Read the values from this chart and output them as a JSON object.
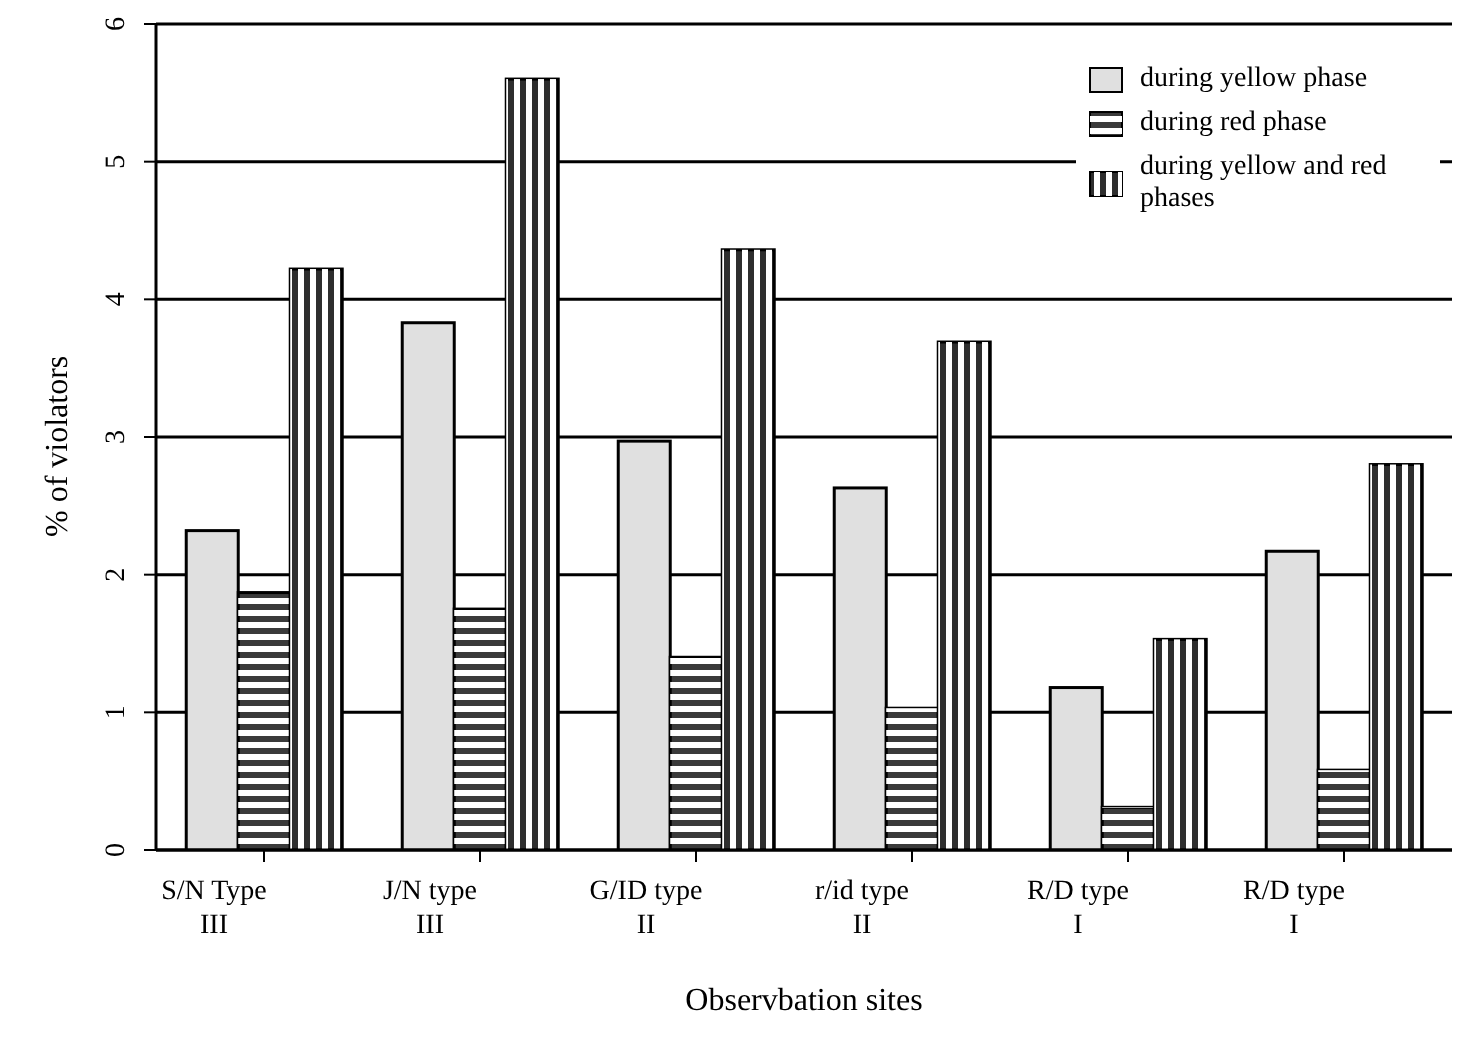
{
  "chart_data": {
    "type": "bar",
    "xlabel": "Observbation sites",
    "ylabel": "% of violators",
    "categories": [
      "S/N Type III",
      "J/N type III",
      "G/ID type II",
      "r/id type II",
      "R/D type I",
      "R/D type I"
    ],
    "series": [
      {
        "name": "during yellow phase",
        "color": "#e0e0e0",
        "values": [
          2.32,
          3.83,
          2.97,
          2.63,
          1.18,
          2.17
        ]
      },
      {
        "name": "during red phase",
        "color": "#3a3a3a",
        "values": [
          1.87,
          1.75,
          1.4,
          1.03,
          0.31,
          0.58
        ]
      },
      {
        "name": "during yellow and red phases",
        "color": "#2e2e2e",
        "values": [
          4.22,
          5.6,
          4.36,
          3.69,
          1.53,
          2.8
        ]
      }
    ],
    "ylim": [
      0,
      6
    ],
    "yticks": [
      0,
      1,
      2,
      3,
      4,
      5,
      6
    ],
    "grid": "y",
    "legend": "top right"
  }
}
